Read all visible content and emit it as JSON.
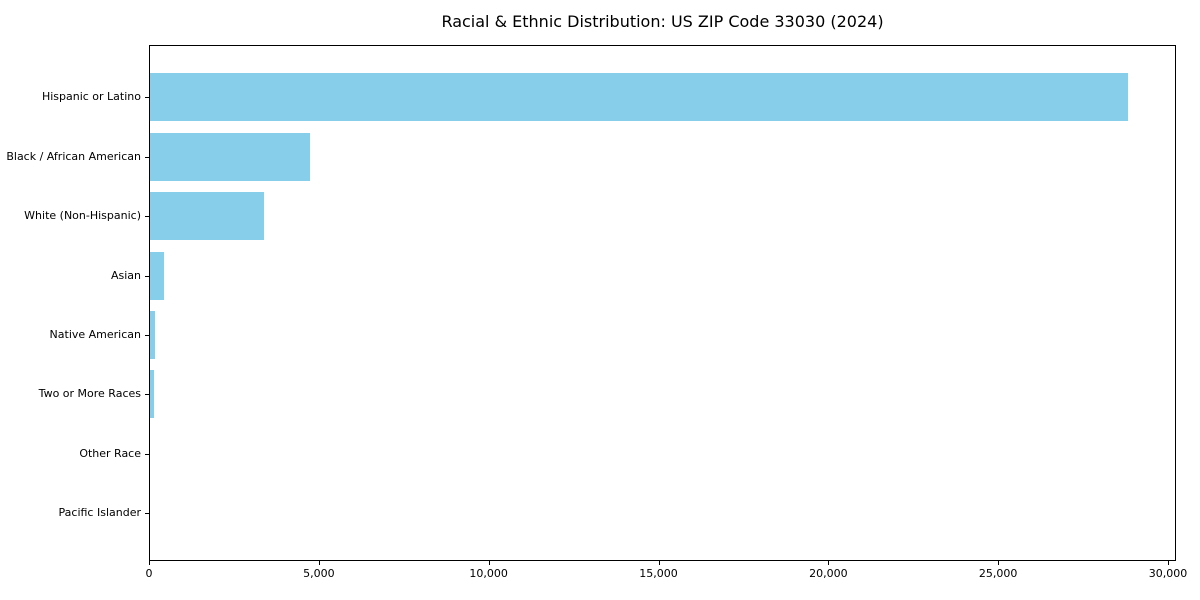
{
  "title": "Racial & Ethnic Distribution: US ZIP Code 33030 (2024)",
  "chart_data": {
    "type": "bar",
    "orientation": "horizontal",
    "title": "Racial & Ethnic Distribution: US ZIP Code 33030 (2024)",
    "xlabel": "",
    "ylabel": "",
    "categories": [
      "Hispanic or Latino",
      "Black / African American",
      "White (Non-Hispanic)",
      "Asian",
      "Native American",
      "Two or More Races",
      "Other Race",
      "Pacific Islander"
    ],
    "values": [
      28800,
      4700,
      3350,
      400,
      160,
      130,
      0,
      0
    ],
    "x_ticks": [
      0,
      5000,
      10000,
      15000,
      20000,
      25000,
      30000
    ],
    "x_tick_labels": [
      "0",
      "5,000",
      "10,000",
      "15,000",
      "20,000",
      "25,000",
      "30,000"
    ],
    "xlim": [
      0,
      30235
    ],
    "bar_color": "#87CEEB",
    "grid": false,
    "legend": null
  }
}
